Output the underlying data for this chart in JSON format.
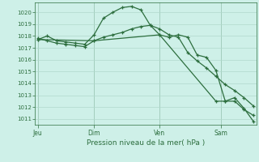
{
  "background_color": "#cef0e8",
  "grid_color": "#b0d8cc",
  "line_color": "#2d6e3e",
  "title": "Pression niveau de la mer( hPa )",
  "ylim": [
    1010.5,
    1020.8
  ],
  "yticks": [
    1011,
    1012,
    1013,
    1014,
    1015,
    1016,
    1017,
    1018,
    1019,
    1020
  ],
  "xlim": [
    -0.3,
    23.3
  ],
  "day_labels": [
    "Jeu",
    "Dim",
    "Ven",
    "Sam"
  ],
  "day_positions": [
    0.0,
    6.0,
    13.0,
    19.5
  ],
  "vline_positions": [
    0.0,
    6.0,
    13.0,
    19.5
  ],
  "series1_x": [
    0,
    1,
    2,
    3,
    4,
    5,
    6,
    7,
    8,
    9,
    10,
    11,
    12,
    13,
    14,
    15,
    16,
    17,
    18,
    19,
    20,
    21,
    22,
    23
  ],
  "series1_y": [
    1017.7,
    1018.0,
    1017.6,
    1017.5,
    1017.4,
    1017.3,
    1018.1,
    1019.5,
    1020.0,
    1020.4,
    1020.5,
    1020.2,
    1018.9,
    1018.1,
    1017.9,
    1018.1,
    1017.9,
    1016.4,
    1016.2,
    1015.1,
    1012.5,
    1012.5,
    1011.8,
    1011.3
  ],
  "series2_x": [
    0,
    1,
    2,
    3,
    4,
    5,
    6,
    7,
    8,
    9,
    10,
    11,
    12,
    13,
    14,
    15,
    16,
    17,
    18,
    19,
    20,
    21,
    22,
    23
  ],
  "series2_y": [
    1017.8,
    1017.6,
    1017.4,
    1017.3,
    1017.2,
    1017.1,
    1017.6,
    1017.9,
    1018.1,
    1018.3,
    1018.6,
    1018.8,
    1018.9,
    1018.6,
    1018.1,
    1017.9,
    1016.6,
    1015.9,
    1015.3,
    1014.6,
    1013.9,
    1013.4,
    1012.8,
    1012.1
  ],
  "series3_x": [
    0,
    6,
    13,
    19,
    20,
    21,
    22,
    23
  ],
  "series3_y": [
    1017.7,
    1017.6,
    1018.1,
    1012.5,
    1012.5,
    1012.8,
    1011.9,
    1010.8
  ]
}
